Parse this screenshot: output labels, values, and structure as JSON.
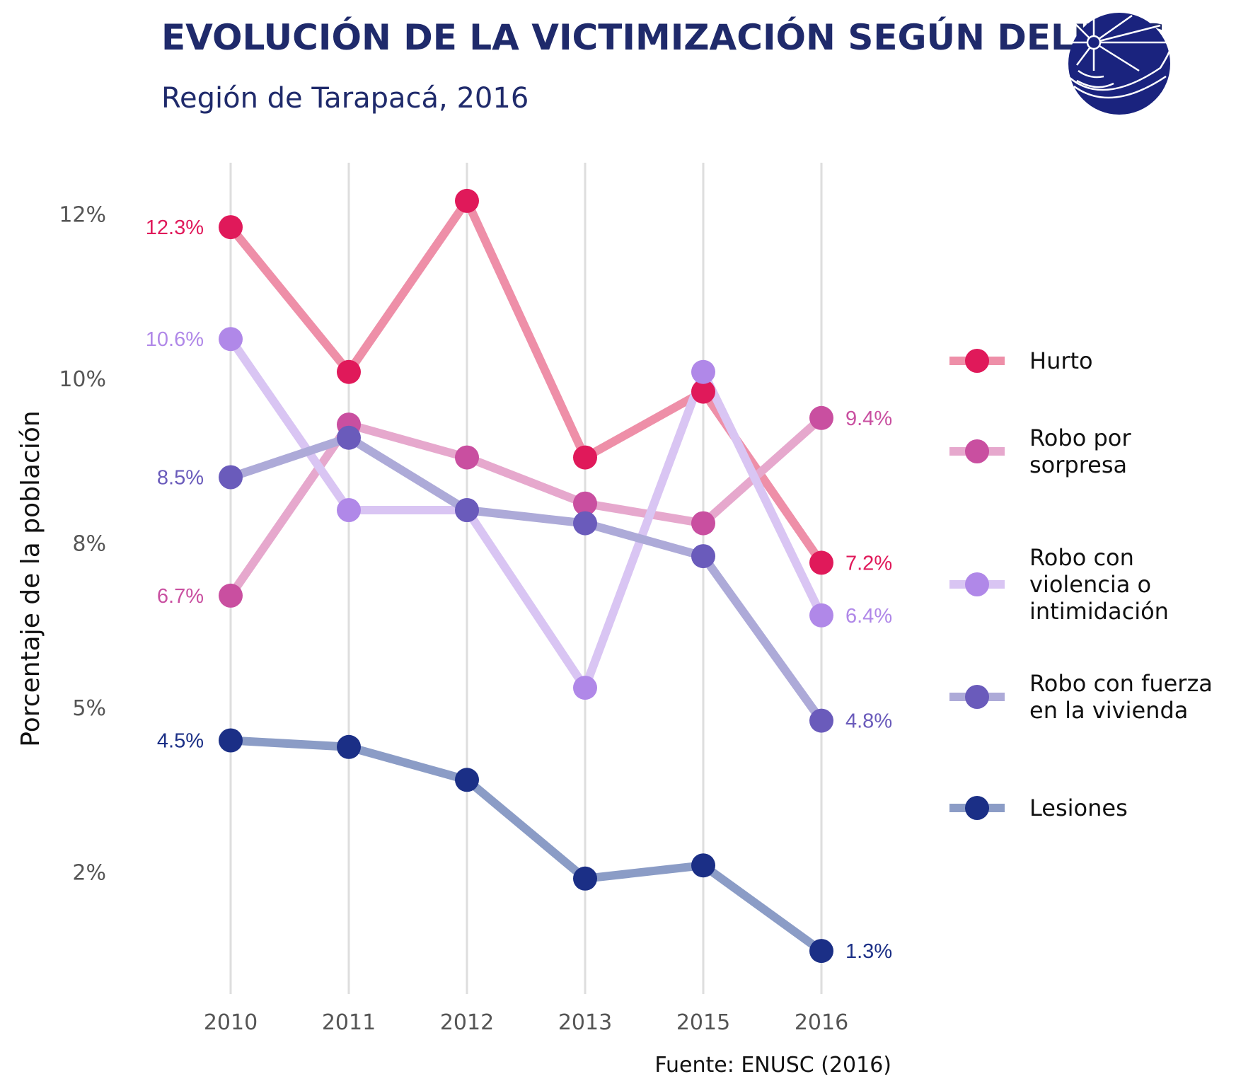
{
  "header": {
    "title": "EVOLUCIÓN DE LA VICTIMIZACIÓN SEGÚN DELITOS",
    "subtitle": "Región de Tarapacá, 2016"
  },
  "logo": {
    "icon": "institution-seal-icon",
    "color": "#1a237e"
  },
  "caption": "Fuente: ENUSC (2016)",
  "chart_data": {
    "type": "line",
    "title": "EVOLUCIÓN DE LA VICTIMIZACIÓN SEGÚN DELITOS",
    "subtitle": "Región de Tarapacá, 2016",
    "xlabel": "",
    "ylabel": "Porcentaje de la población",
    "categories": [
      "2010",
      "2011",
      "2012",
      "2013",
      "2015",
      "2016"
    ],
    "ylim": [
      0,
      14
    ],
    "yticks": [
      2.5,
      5,
      7.5,
      10,
      12.5
    ],
    "ytick_labels": [
      "2%",
      "5%",
      "8%",
      "10%",
      "12%"
    ],
    "grid": "vertical",
    "legend_placement": "right",
    "series": [
      {
        "name": "Hurto",
        "legend_lines": [
          "Hurto"
        ],
        "color": "#e0195a",
        "line_color": "#ee8fa8",
        "values": [
          12.3,
          10.1,
          12.7,
          8.8,
          9.8,
          7.2
        ],
        "start_label": "12.3%",
        "end_label": "7.2%"
      },
      {
        "name": "Robo por sorpresa",
        "legend_lines": [
          "Robo por",
          "sorpresa"
        ],
        "color": "#c94fa0",
        "line_color": "#e6a8cd",
        "values": [
          6.7,
          9.3,
          8.8,
          8.1,
          7.8,
          9.4
        ],
        "start_label": "6.7%",
        "end_label": "9.4%"
      },
      {
        "name": "Robo con violencia o intimidación",
        "legend_lines": [
          "Robo con",
          "violencia o",
          "intimidación"
        ],
        "color": "#b088e8",
        "line_color": "#d9c5f3",
        "values": [
          10.6,
          8.0,
          8.0,
          5.3,
          10.1,
          6.4
        ],
        "start_label": "10.6%",
        "end_label": "6.4%"
      },
      {
        "name": "Robo con fuerza en la vivienda",
        "legend_lines": [
          "Robo con fuerza",
          "en la vivienda"
        ],
        "color": "#6a5bbb",
        "line_color": "#adaad8",
        "values": [
          8.5,
          9.1,
          8.0,
          7.8,
          7.3,
          4.8
        ],
        "start_label": "8.5%",
        "end_label": "4.8%"
      },
      {
        "name": "Lesiones",
        "legend_lines": [
          "Lesiones"
        ],
        "color": "#1b2f86",
        "line_color": "#8b9cc6",
        "values": [
          4.5,
          4.4,
          3.9,
          2.4,
          2.6,
          1.3
        ],
        "start_label": "4.5%",
        "end_label": "1.3%"
      }
    ]
  }
}
